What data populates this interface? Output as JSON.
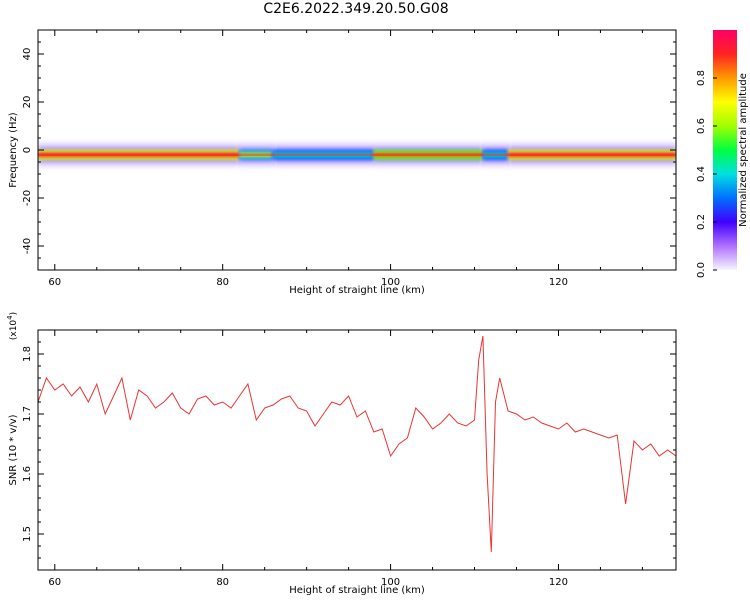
{
  "title": "C2E6.2022.349.20.50.G08",
  "colors": {
    "snr_line": "#ee3333",
    "axis": "#000000",
    "colorbar": [
      "#f5f5ff",
      "#b070ff",
      "#4000ff",
      "#0070ff",
      "#00e0e0",
      "#00ff40",
      "#a0ff00",
      "#ffff00",
      "#ff9900",
      "#ff2222",
      "#ff0066"
    ]
  },
  "chart_data": [
    {
      "type": "heatmap",
      "title": "C2E6.2022.349.20.50.G08",
      "xlabel": "Height of straight line (km)",
      "ylabel": "Frequency (Hz)",
      "xlim": [
        58,
        134
      ],
      "ylim": [
        -50,
        50
      ],
      "x_ticks": [
        "60",
        "80",
        "100",
        "120"
      ],
      "y_ticks": [
        "40",
        "20",
        "0",
        "-20",
        "-40"
      ],
      "colorbar": {
        "label": "Normalized spectral amplitude",
        "range": [
          0,
          1
        ],
        "ticks": [
          "0.0",
          "0.2",
          "0.4",
          "0.6",
          "0.8"
        ]
      },
      "band_center_hz": -2,
      "band_segments": [
        {
          "x0": 58,
          "x1": 82,
          "amplitude": 0.95
        },
        {
          "x0": 82,
          "x1": 86,
          "amplitude": 0.65
        },
        {
          "x0": 86,
          "x1": 98,
          "amplitude": 0.42
        },
        {
          "x0": 98,
          "x1": 111,
          "amplitude": 0.85
        },
        {
          "x0": 111,
          "x1": 114,
          "amplitude": 0.42
        },
        {
          "x0": 114,
          "x1": 134,
          "amplitude": 0.95
        }
      ]
    },
    {
      "type": "line",
      "xlabel": "Height of straight line (km)",
      "ylabel": "SNR (10 * v/v)",
      "multiplier": "(x10^4)",
      "xlim": [
        58,
        134
      ],
      "ylim": [
        14400,
        18400
      ],
      "x_ticks": [
        "60",
        "80",
        "100",
        "120"
      ],
      "y_ticks": [
        "1.5",
        "1.6",
        "1.7",
        "1.8"
      ],
      "series": [
        {
          "x": [
            58,
            59,
            60,
            61,
            62,
            63,
            64,
            65,
            66,
            67,
            68,
            69,
            70,
            71,
            72,
            73,
            74,
            75,
            76,
            77,
            78,
            79,
            80,
            81,
            82,
            83,
            84,
            85,
            86,
            87,
            88,
            89,
            90,
            91,
            92,
            93,
            94,
            95,
            96,
            97,
            98,
            99,
            100,
            101,
            102,
            103,
            104,
            105,
            106,
            107,
            108,
            109,
            110,
            110.5,
            111,
            111.5,
            112,
            112.5,
            113,
            114,
            115,
            116,
            117,
            118,
            119,
            120,
            121,
            122,
            123,
            124,
            125,
            126,
            127,
            128,
            129,
            130,
            131,
            132,
            133,
            134
          ],
          "y": [
            17200,
            17600,
            17400,
            17500,
            17300,
            17450,
            17200,
            17500,
            17000,
            17300,
            17600,
            16900,
            17400,
            17300,
            17100,
            17200,
            17350,
            17100,
            17000,
            17250,
            17300,
            17150,
            17200,
            17100,
            17300,
            17500,
            16900,
            17100,
            17150,
            17250,
            17300,
            17100,
            17050,
            16800,
            17000,
            17200,
            17150,
            17300,
            16950,
            17050,
            16700,
            16750,
            16300,
            16500,
            16600,
            17100,
            16950,
            16750,
            16850,
            17000,
            16850,
            16800,
            16900,
            17900,
            18300,
            16000,
            14700,
            17200,
            17600,
            17050,
            17000,
            16900,
            16950,
            16850,
            16800,
            16750,
            16850,
            16700,
            16750,
            16700,
            16650,
            16600,
            16650,
            15500,
            16550,
            16400,
            16500,
            16300,
            16400,
            16300
          ]
        }
      ]
    }
  ]
}
